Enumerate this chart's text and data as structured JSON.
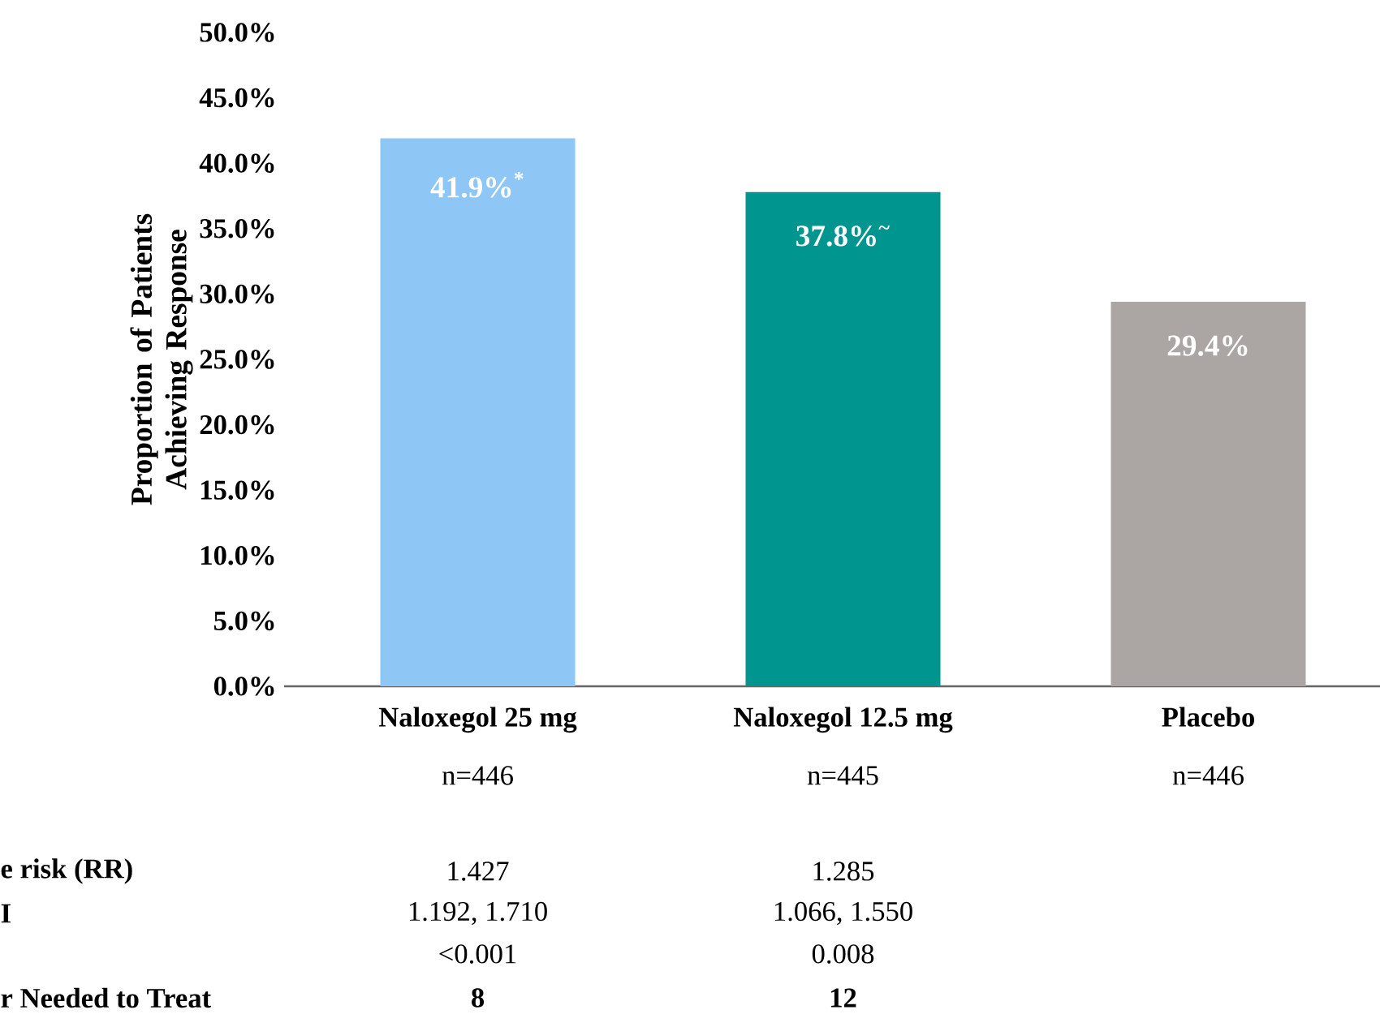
{
  "chart_data": {
    "type": "bar",
    "ylabel": "Proportion of Patients Achieving Response",
    "categories": [
      "Naloxegol 25 mg",
      "Naloxegol 12.5 mg",
      "Placebo"
    ],
    "values": [
      41.9,
      37.8,
      29.4
    ],
    "colors": [
      "#8ec6f6",
      "#00958f",
      "#aba6a4"
    ],
    "value_labels": [
      "41.9%$^{*}$",
      "37.8%$^{~}$",
      "29.4%"
    ],
    "ylim": [
      0,
      50
    ],
    "yticks": [
      {
        "value": 0,
        "label": "0.0%"
      },
      {
        "value": 5,
        "label": "5.0%"
      },
      {
        "value": 10,
        "label": "10.0%"
      },
      {
        "value": 15,
        "label": "15.0%"
      },
      {
        "value": 20,
        "label": "20.0%"
      },
      {
        "value": 25,
        "label": "25.0%"
      },
      {
        "value": 30,
        "label": "30.0%"
      },
      {
        "value": 35,
        "label": "35.0%"
      },
      {
        "value": 40,
        "label": "40.0%"
      },
      {
        "value": 45,
        "label": "45.0%"
      },
      {
        "value": 50,
        "label": "50.0%"
      }
    ],
    "annotations": [
      "n=446",
      "n=445",
      "n=446",
      "e risk (RR)",
      "1.427",
      "1.285",
      "I",
      "1.192, 1.710",
      "1.066, 1.550",
      "<0.001",
      "0.008",
      "r Needed to Treat",
      "8",
      "12"
    ]
  }
}
